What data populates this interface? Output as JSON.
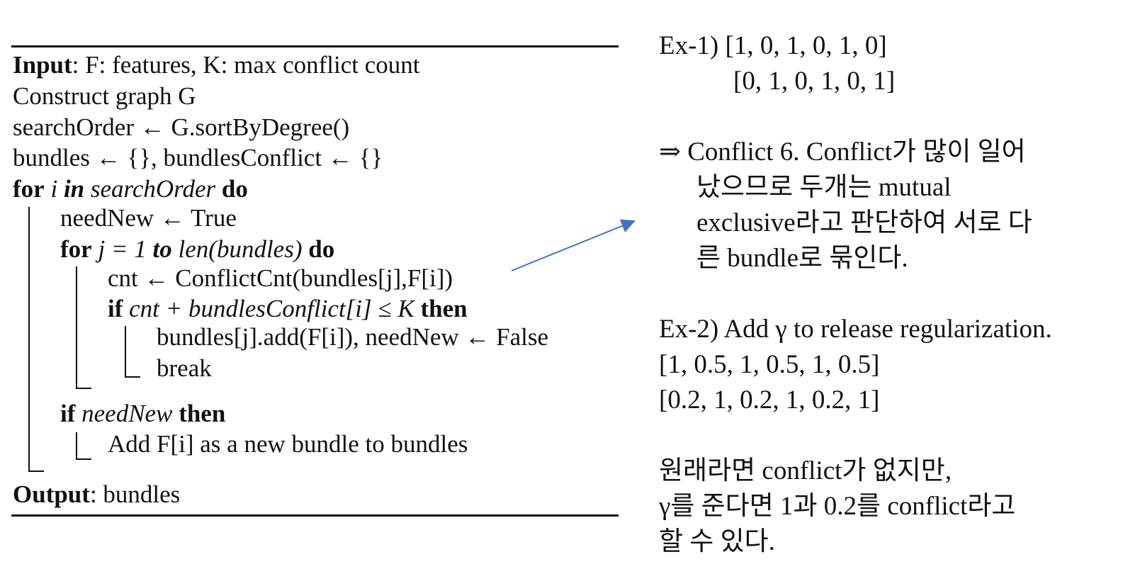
{
  "algorithm": {
    "input_kw": "Input",
    "input_text": ": F: features, K: max conflict count",
    "construct": "Construct graph G",
    "search_order": "searchOrder ← G.sortByDegree()",
    "bundles_init": "bundles ← {}, bundlesConflict ← {}",
    "for1_kw": "for",
    "for1_var": " i ",
    "for1_in": "in",
    "for1_rest": " searchOrder ",
    "for1_do": "do",
    "need_new": "needNew ← True",
    "for2_kw": "for",
    "for2_expr": " j = 1 ",
    "for2_to": "to",
    "for2_len": " len(bundles) ",
    "for2_do": "do",
    "cnt_line": "cnt ← ConflictCnt(bundles[j],F[i])",
    "if1_kw": "if",
    "if1_cond": " cnt + bundlesConflict[i] ≤ K ",
    "if1_then": "then",
    "add_line": "bundles[j].add(F[i]), needNew ← False",
    "break_line": "break",
    "if2_kw": "if",
    "if2_cond": " needNew ",
    "if2_then": "then",
    "add_new": "Add F[i] as a new bundle to bundles",
    "output_kw": "Output",
    "output_text": ": bundles"
  },
  "notes": {
    "ex1_label": "Ex-1) [1, 0, 1, 0, 1, 0]",
    "ex1_row2": "[0, 1, 0, 1, 0, 1]",
    "implies_line1": "⇒ Conflict 6. Conflict가 많이 일어",
    "implies_line2": "났으므로 두개는 mutual",
    "implies_line3": "exclusive라고 판단하여 서로 다",
    "implies_line4": "른 bundle로 묶인다.",
    "ex2_label": "Ex-2) Add γ to release regularization.",
    "ex2_row1": "[1,  0.5,    1, 0.5,    1, 0.5]",
    "ex2_row2": "[0.2,  1, 0.2,    1, 0.2,    1]",
    "korean1": "원래라면 conflict가 없지만,",
    "korean2": "γ를 준다면 1과 0.2를 conflict라고",
    "korean3": "할 수 있다."
  },
  "arrow_color": "#4472c4"
}
